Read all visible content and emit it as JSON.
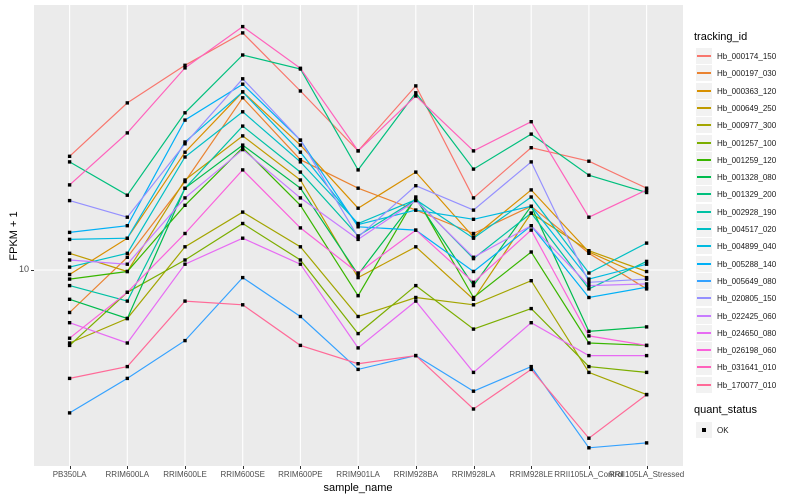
{
  "figure_title": "",
  "axes": {
    "x": {
      "title": "sample_name"
    },
    "y": {
      "title": "FPKM + 1",
      "tick_labels": [
        "10"
      ],
      "scale": "log10"
    }
  },
  "legend": {
    "tracking_title": "tracking_id",
    "quant_title": "quant_status",
    "quant_items": [
      {
        "label": "OK",
        "marker": "black-square"
      }
    ]
  },
  "colors": {
    "panel_background": "#EBEBEB",
    "gridline": "#FFFFFF",
    "tick_text": "#4D4D4D",
    "marker": "#000000",
    "legend_key_background": "#F2F2F2"
  },
  "chart_data": {
    "type": "line",
    "title": "",
    "xlabel": "sample_name",
    "ylabel": "FPKM + 1",
    "yscale": "log10",
    "ylim": [
      2.6,
      60
    ],
    "ytick_values": [
      10
    ],
    "grid": "on",
    "legend_position": "right",
    "point_marker": {
      "shape": "square",
      "color": "#000000",
      "meaning": "quant_status OK"
    },
    "x": [
      "PB350LA",
      "RRIM600LA",
      "RRIM600LE",
      "RRIM600SE",
      "RRIM600PE",
      "RRIM901LA",
      "RRIM928BA",
      "RRIM928LA",
      "RRIM928LE",
      "RRII105LA_Control",
      "RRII105LA_Stressed"
    ],
    "series": [
      {
        "name": "Hb_000174_150",
        "color": "#F8766D",
        "values": [
          21.6,
          31.0,
          40.0,
          49.8,
          33.6,
          22.4,
          34.8,
          16.3,
          22.9,
          20.9,
          17.4
        ]
      },
      {
        "name": "Hb_000197_030",
        "color": "#EA8331",
        "values": [
          7.5,
          10.9,
          18.2,
          32.1,
          21.1,
          17.4,
          15.0,
          12.8,
          15.4,
          11.2,
          8.8
        ]
      },
      {
        "name": "Hb_000363_120",
        "color": "#D89000",
        "values": [
          9.7,
          12.4,
          22.2,
          33.4,
          23.3,
          15.2,
          19.4,
          12.5,
          17.2,
          11.3,
          9.5
        ]
      },
      {
        "name": "Hb_000649_250",
        "color": "#C09B00",
        "values": [
          11.2,
          9.9,
          18.4,
          24.8,
          18.4,
          9.5,
          11.7,
          8.2,
          14.7,
          11.4,
          9.9
        ]
      },
      {
        "name": "Hb_000977_300",
        "color": "#A3A500",
        "values": [
          6.1,
          7.2,
          11.7,
          14.8,
          11.7,
          7.3,
          8.3,
          7.9,
          9.3,
          5.0,
          4.3
        ]
      },
      {
        "name": "Hb_001257_100",
        "color": "#7CAE00",
        "values": [
          6.0,
          8.6,
          10.7,
          13.7,
          10.7,
          6.5,
          9.0,
          6.7,
          7.7,
          5.2,
          5.0
        ]
      },
      {
        "name": "Hb_001259_120",
        "color": "#39B600",
        "values": [
          9.4,
          9.9,
          15.5,
          22.9,
          15.5,
          8.4,
          16.4,
          8.3,
          11.3,
          6.1,
          6.0
        ]
      },
      {
        "name": "Hb_001328_080",
        "color": "#00BB4E",
        "values": [
          8.2,
          7.2,
          17.4,
          23.3,
          17.4,
          9.7,
          16.2,
          9.0,
          15.4,
          6.6,
          6.8
        ]
      },
      {
        "name": "Hb_001329_200",
        "color": "#00BF7D",
        "values": [
          20.8,
          16.6,
          29.0,
          42.9,
          39.0,
          19.7,
          33.2,
          19.8,
          25.1,
          19.0,
          16.9
        ]
      },
      {
        "name": "Hb_002928_190",
        "color": "#00C1A3",
        "values": [
          9.0,
          8.1,
          17.4,
          26.5,
          19.4,
          12.6,
          16.1,
          10.8,
          14.7,
          8.8,
          10.6
        ]
      },
      {
        "name": "Hb_004517_020",
        "color": "#00BFC4",
        "values": [
          10.2,
          11.2,
          21.5,
          29.2,
          20.8,
          13.7,
          16.1,
          12.4,
          16.4,
          9.8,
          12.0
        ]
      },
      {
        "name": "Hb_004899_040",
        "color": "#00BAE0",
        "values": [
          12.3,
          12.4,
          23.8,
          33.4,
          22.2,
          13.6,
          15.0,
          14.1,
          15.4,
          9.4,
          10.4
        ]
      },
      {
        "name": "Hb_005288_140",
        "color": "#00B0F6",
        "values": [
          12.9,
          13.5,
          27.6,
          35.2,
          24.1,
          13.4,
          13.1,
          9.9,
          13.5,
          8.3,
          8.9
        ]
      },
      {
        "name": "Hb_005649_080",
        "color": "#35A2FF",
        "values": [
          3.8,
          4.8,
          6.2,
          9.5,
          7.3,
          5.1,
          5.6,
          4.4,
          5.2,
          3.0,
          3.1
        ]
      },
      {
        "name": "Hb_020805_150",
        "color": "#9590FF",
        "values": [
          16.0,
          14.3,
          23.5,
          36.5,
          24.1,
          12.5,
          17.7,
          15.0,
          20.8,
          9.2,
          9.4
        ]
      },
      {
        "name": "Hb_022425_060",
        "color": "#C77CFF",
        "values": [
          10.7,
          10.4,
          16.3,
          22.6,
          16.3,
          12.3,
          16.0,
          10.9,
          13.5,
          9.0,
          9.1
        ]
      },
      {
        "name": "Hb_024650_080",
        "color": "#E76BF3",
        "values": [
          7.0,
          6.1,
          10.4,
          12.4,
          10.4,
          5.9,
          8.1,
          5.0,
          7.0,
          5.6,
          5.6
        ]
      },
      {
        "name": "Hb_026198_060",
        "color": "#FA62DB",
        "values": [
          6.3,
          8.6,
          12.8,
          19.7,
          13.3,
          9.8,
          13.1,
          9.2,
          13.1,
          6.4,
          6.0
        ]
      },
      {
        "name": "Hb_031641_010",
        "color": "#FF62BC",
        "values": [
          17.8,
          25.3,
          39.3,
          52.0,
          39.2,
          22.4,
          32.5,
          22.4,
          27.3,
          14.3,
          17.2
        ]
      },
      {
        "name": "Hb_170077_010",
        "color": "#FF6A98",
        "values": [
          4.8,
          5.2,
          8.1,
          7.9,
          6.0,
          5.3,
          5.6,
          3.9,
          5.1,
          3.2,
          4.3
        ]
      }
    ]
  }
}
